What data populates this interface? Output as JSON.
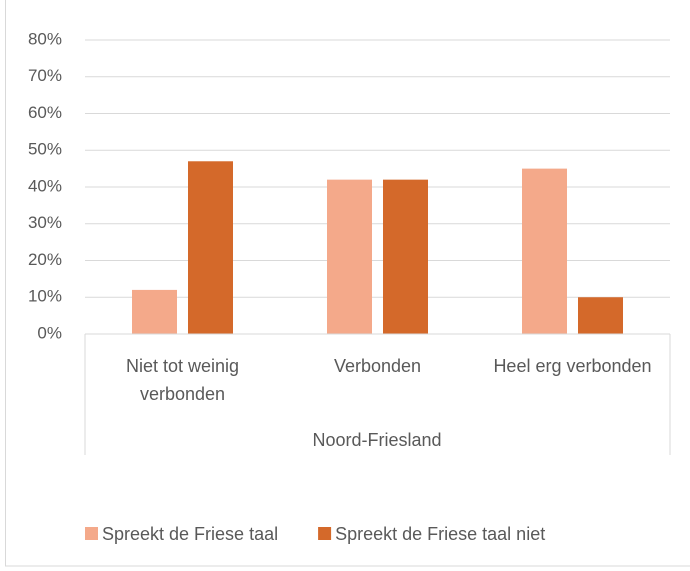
{
  "chart_data": {
    "type": "bar",
    "categories": [
      "Niet tot weinig verbonden",
      "Verbonden",
      "Heel erg verbonden"
    ],
    "group_label": "Noord-Friesland",
    "series": [
      {
        "name": "Spreekt de Friese taal",
        "color": "#f4a98a",
        "values": [
          12,
          42,
          45
        ]
      },
      {
        "name": "Spreekt de Friese taal niet",
        "color": "#d4692a",
        "values": [
          47,
          42,
          10
        ]
      }
    ],
    "ylim": [
      0,
      80
    ],
    "yticks": [
      {
        "value": 0,
        "label": "0%"
      },
      {
        "value": 10,
        "label": "10%"
      },
      {
        "value": 20,
        "label": "20%"
      },
      {
        "value": 30,
        "label": "30%"
      },
      {
        "value": 40,
        "label": "40%"
      },
      {
        "value": 50,
        "label": "50%"
      },
      {
        "value": 60,
        "label": "60%"
      },
      {
        "value": 70,
        "label": "70%"
      },
      {
        "value": 80,
        "label": "80%"
      }
    ],
    "grid": true,
    "legend": "bottom"
  }
}
